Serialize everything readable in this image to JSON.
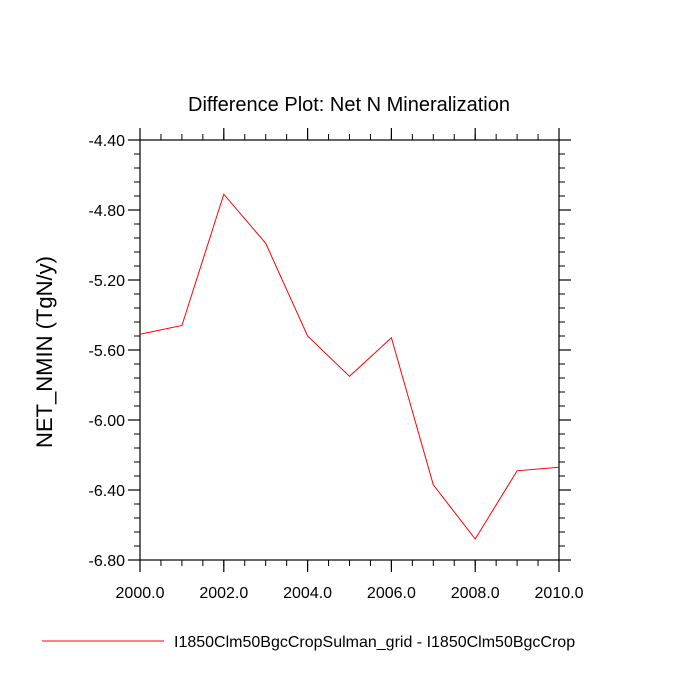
{
  "chart_data": {
    "type": "line",
    "title": "Difference Plot: Net N Mineralization",
    "xlabel": "",
    "ylabel": "NET_NMIN  (TgN/y)",
    "xlim": [
      2000,
      2010
    ],
    "ylim": [
      -6.8,
      -4.4
    ],
    "x_ticks": [
      2000,
      2002,
      2004,
      2006,
      2008,
      2010
    ],
    "x_tick_labels": [
      "2000.0",
      "2002.0",
      "2004.0",
      "2006.0",
      "2008.0",
      "2010.0"
    ],
    "y_ticks": [
      -4.4,
      -4.8,
      -5.2,
      -5.6,
      -6.0,
      -6.4,
      -6.8
    ],
    "y_tick_labels": [
      "-4.40",
      "-4.80",
      "-5.20",
      "-5.60",
      "-6.00",
      "-6.40",
      "-6.80"
    ],
    "grid": false,
    "legend_position": "bottom",
    "series": [
      {
        "name": "I1850Clm50BgcCropSulman_grid - I1850Clm50BgcCrop",
        "color": "#ff0000",
        "x": [
          2000,
          2001,
          2002,
          2003,
          2004,
          2005,
          2006,
          2007,
          2008,
          2009,
          2010
        ],
        "values": [
          -5.51,
          -5.46,
          -4.71,
          -4.99,
          -5.52,
          -5.75,
          -5.53,
          -6.37,
          -6.68,
          -6.29,
          -6.27
        ]
      }
    ]
  }
}
